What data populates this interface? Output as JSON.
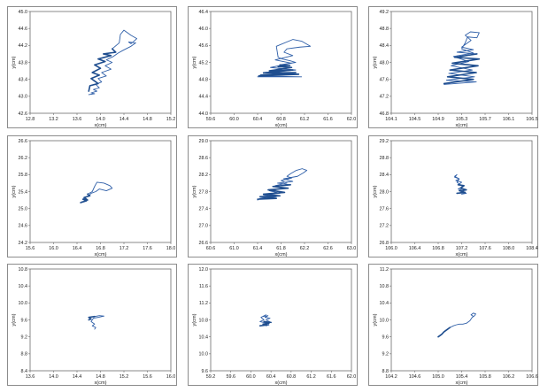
{
  "style": {
    "trace_color": "#2f5fa8",
    "trace_dense_color": "#1f4e8f",
    "frame_color": "#8c8c8c"
  },
  "chart_data": [
    {
      "type": "line",
      "xlabel": "x(cm)",
      "ylabel": "y(cm)",
      "xlim": [
        12.8,
        15.2
      ],
      "ylim": [
        42.6,
        45.0
      ],
      "xticks": [
        "12.8",
        "13.2",
        "13.6",
        "14.0",
        "14.4",
        "14.8",
        "15.2"
      ],
      "yticks": [
        "42.6",
        "43.0",
        "43.4",
        "43.8",
        "44.2",
        "44.6",
        "45.0"
      ],
      "series": [
        {
          "x": [
            13.8,
            13.82,
            13.96,
            13.84,
            13.98,
            13.86,
            14.0,
            13.9,
            14.08,
            13.96,
            14.18,
            14.05,
            14.26,
            14.2,
            14.32,
            14.34,
            14.4,
            14.52,
            14.62,
            14.52,
            14.48,
            14.6,
            14.52,
            14.38,
            14.3,
            14.22,
            14.1,
            14.2,
            14.08,
            14.18,
            14.02,
            14.1,
            13.96,
            14.02,
            13.92,
            13.98,
            13.88,
            13.94,
            13.84,
            13.9,
            13.8
          ],
          "y": [
            43.12,
            43.25,
            43.3,
            43.42,
            43.5,
            43.56,
            43.66,
            43.74,
            43.82,
            43.88,
            43.96,
            44.0,
            44.04,
            44.12,
            44.26,
            44.46,
            44.56,
            44.44,
            44.36,
            44.24,
            44.28,
            44.26,
            44.18,
            44.08,
            44.02,
            43.94,
            43.86,
            43.8,
            43.72,
            43.64,
            43.56,
            43.48,
            43.42,
            43.34,
            43.28,
            43.2,
            43.16,
            43.12,
            43.08,
            43.06,
            43.04
          ]
        }
      ]
    },
    {
      "type": "line",
      "xlabel": "x(cm)",
      "ylabel": "y(cm)",
      "xlim": [
        59.6,
        62.0
      ],
      "ylim": [
        44.0,
        46.4
      ],
      "xticks": [
        "59.6",
        "60.0",
        "60.4",
        "60.8",
        "61.2",
        "61.6",
        "62.0"
      ],
      "yticks": [
        "44.0",
        "44.4",
        "44.8",
        "45.2",
        "45.6",
        "46.0",
        "46.4"
      ],
      "series": [
        {
          "x": [
            60.42,
            61.1,
            60.45,
            61.05,
            60.5,
            61.0,
            60.6,
            60.98,
            60.75,
            60.95,
            60.78,
            61.05,
            60.95,
            60.82,
            60.75,
            60.72,
            61.0,
            61.15,
            61.3,
            61.12,
            60.9,
            60.85,
            61.0,
            60.7,
            60.98,
            60.62,
            61.05,
            60.5,
            61.1,
            60.42,
            61.15,
            60.4
          ],
          "y": [
            44.88,
            44.92,
            44.9,
            44.96,
            44.95,
            45.02,
            45.0,
            45.08,
            45.1,
            45.12,
            45.14,
            45.2,
            45.24,
            45.28,
            45.32,
            45.58,
            45.74,
            45.7,
            45.58,
            45.56,
            45.52,
            45.44,
            45.36,
            45.26,
            45.18,
            45.08,
            45.02,
            44.96,
            44.93,
            44.88,
            44.86,
            44.86
          ]
        }
      ]
    },
    {
      "type": "line",
      "xlabel": "x(cm)",
      "ylabel": "y(cm)",
      "xlim": [
        104.1,
        106.5
      ],
      "ylim": [
        46.8,
        49.2
      ],
      "xticks": [
        "104.1",
        "104.5",
        "104.9",
        "105.3",
        "105.7",
        "106.1",
        "106.5"
      ],
      "yticks": [
        "46.8",
        "47.2",
        "47.6",
        "48.0",
        "48.4",
        "48.8",
        "49.2"
      ],
      "series": [
        {
          "x": [
            105.0,
            105.5,
            105.06,
            105.55,
            105.1,
            105.58,
            105.14,
            105.6,
            105.18,
            105.56,
            105.22,
            105.5,
            105.3,
            105.46,
            105.36,
            105.45,
            105.6,
            105.56,
            105.4,
            105.36,
            105.3,
            105.5,
            105.16,
            105.42,
            105.12,
            105.48,
            105.08,
            105.52,
            105.04,
            105.55,
            105.0
          ],
          "y": [
            47.5,
            47.6,
            47.66,
            47.76,
            47.82,
            47.92,
            47.98,
            48.08,
            48.12,
            48.2,
            48.24,
            48.3,
            48.36,
            48.52,
            48.64,
            48.72,
            48.7,
            48.58,
            48.6,
            48.46,
            48.32,
            48.22,
            48.14,
            48.02,
            47.92,
            47.82,
            47.74,
            47.66,
            47.58,
            47.54,
            47.48
          ]
        }
      ]
    },
    {
      "type": "line",
      "xlabel": "x(cm)",
      "ylabel": "y(cm)",
      "xlim": [
        15.6,
        18.0
      ],
      "ylim": [
        24.2,
        26.6
      ],
      "xticks": [
        "15.6",
        "16.0",
        "16.4",
        "16.8",
        "17.2",
        "17.6",
        "18.0"
      ],
      "yticks": [
        "24.2",
        "24.6",
        "25.0",
        "25.4",
        "25.8",
        "26.2",
        "26.6"
      ],
      "series": [
        {
          "x": [
            16.46,
            16.56,
            16.5,
            16.58,
            16.52,
            16.62,
            16.58,
            16.66,
            16.7,
            16.74,
            16.86,
            16.96,
            17.0,
            16.9,
            16.78,
            16.72,
            16.64,
            16.6,
            16.54,
            16.5,
            16.56,
            16.48
          ],
          "y": [
            25.14,
            25.18,
            25.22,
            25.2,
            25.26,
            25.3,
            25.34,
            25.4,
            25.52,
            25.62,
            25.6,
            25.54,
            25.48,
            25.42,
            25.46,
            25.4,
            25.36,
            25.3,
            25.26,
            25.22,
            25.18,
            25.16
          ]
        }
      ]
    },
    {
      "type": "line",
      "xlabel": "x(cm)",
      "ylabel": "y(cm)",
      "xlim": [
        60.6,
        63.0
      ],
      "ylim": [
        26.6,
        29.0
      ],
      "xticks": [
        "60.6",
        "61.0",
        "61.4",
        "61.8",
        "62.2",
        "62.6",
        "63.0"
      ],
      "yticks": [
        "26.6",
        "27.0",
        "27.4",
        "27.8",
        "28.2",
        "28.6",
        "29.0"
      ],
      "series": [
        {
          "x": [
            61.4,
            61.72,
            61.44,
            61.78,
            61.5,
            61.86,
            61.58,
            61.92,
            61.66,
            61.96,
            61.74,
            62.0,
            61.84,
            62.08,
            62.18,
            62.24,
            62.16,
            62.06,
            61.96,
            61.9,
            61.98,
            61.8,
            61.9,
            61.7,
            61.84,
            61.6,
            61.78,
            61.5,
            61.72,
            61.44,
            61.4
          ],
          "y": [
            27.62,
            27.64,
            27.68,
            27.7,
            27.74,
            27.78,
            27.84,
            27.88,
            27.92,
            27.96,
            28.0,
            28.04,
            28.1,
            28.16,
            28.24,
            28.3,
            28.34,
            28.3,
            28.22,
            28.16,
            28.12,
            28.06,
            28.0,
            27.94,
            27.88,
            27.82,
            27.76,
            27.72,
            27.68,
            27.64,
            27.6
          ]
        }
      ]
    },
    {
      "type": "line",
      "xlabel": "x(cm)",
      "ylabel": "y(cm)",
      "xlim": [
        106.0,
        108.4
      ],
      "ylim": [
        26.8,
        29.2
      ],
      "xticks": [
        "106.0",
        "106.4",
        "106.8",
        "107.2",
        "107.6",
        "108.0",
        "108.4"
      ],
      "yticks": [
        "26.8",
        "27.2",
        "27.6",
        "28.0",
        "28.4",
        "28.8",
        "29.2"
      ],
      "series": [
        {
          "x": [
            107.12,
            107.26,
            107.16,
            107.28,
            107.18,
            107.24,
            107.14,
            107.2,
            107.1,
            107.16,
            107.08,
            107.12,
            107.08,
            107.16,
            107.12,
            107.22,
            107.14,
            107.24,
            107.18,
            107.28,
            107.2
          ],
          "y": [
            27.96,
            27.98,
            28.02,
            28.04,
            28.08,
            28.14,
            28.16,
            28.22,
            28.26,
            28.3,
            28.34,
            28.4,
            28.36,
            28.3,
            28.22,
            28.12,
            28.06,
            28.02,
            27.98,
            27.96,
            27.94
          ]
        }
      ]
    },
    {
      "type": "line",
      "xlabel": "x(cm)",
      "ylabel": "y(cm)",
      "xlim": [
        13.6,
        16.0
      ],
      "ylim": [
        8.4,
        10.8
      ],
      "xticks": [
        "13.6",
        "14.0",
        "14.4",
        "14.8",
        "15.2",
        "15.6",
        "16.0"
      ],
      "yticks": [
        "8.4",
        "8.8",
        "9.2",
        "9.6",
        "10.0",
        "10.4",
        "10.8"
      ],
      "series": [
        {
          "x": [
            14.6,
            14.64,
            14.6,
            14.7,
            14.78,
            14.86,
            14.76,
            14.68,
            14.64,
            14.7,
            14.66,
            14.72,
            14.7
          ],
          "y": [
            9.6,
            9.62,
            9.66,
            9.68,
            9.7,
            9.69,
            9.66,
            9.64,
            9.56,
            9.5,
            9.46,
            9.42,
            9.38
          ]
        }
      ]
    },
    {
      "type": "line",
      "xlabel": "x(cm)",
      "ylabel": "y(cm)",
      "xlim": [
        59.2,
        62.0
      ],
      "ylim": [
        9.6,
        12.0
      ],
      "xticks": [
        "59.2",
        "59.6",
        "60.0",
        "60.4",
        "60.8",
        "61.2",
        "61.6",
        "62.0"
      ],
      "yticks": [
        "9.6",
        "10.0",
        "10.4",
        "10.8",
        "11.2",
        "11.6",
        "12.0"
      ],
      "series": [
        {
          "x": [
            60.18,
            60.32,
            60.24,
            60.36,
            60.26,
            60.4,
            60.3,
            60.38,
            60.28,
            60.34,
            60.24,
            60.3,
            60.2,
            60.26,
            60.18,
            60.32,
            60.36,
            60.3
          ],
          "y": [
            10.66,
            10.68,
            10.7,
            10.72,
            10.76,
            10.74,
            10.8,
            10.84,
            10.86,
            10.9,
            10.88,
            10.92,
            10.86,
            10.8,
            10.76,
            10.72,
            10.68,
            10.66
          ]
        }
      ]
    },
    {
      "type": "line",
      "xlabel": "x(cm)",
      "ylabel": "y(cm)",
      "xlim": [
        104.2,
        106.6
      ],
      "ylim": [
        8.8,
        11.2
      ],
      "xticks": [
        "104.2",
        "104.6",
        "105.0",
        "105.4",
        "105.8",
        "106.2",
        "106.6"
      ],
      "yticks": [
        "8.8",
        "9.2",
        "9.6",
        "10.0",
        "10.4",
        "10.8",
        "11.2"
      ],
      "series": [
        {
          "x": [
            105.0,
            105.06,
            105.1,
            105.16,
            105.2,
            105.26,
            105.3,
            105.36,
            105.42,
            105.48,
            105.54,
            105.58,
            105.62,
            105.64,
            105.6,
            105.56,
            105.6
          ],
          "y": [
            9.6,
            9.66,
            9.72,
            9.78,
            9.82,
            9.86,
            9.88,
            9.9,
            9.9,
            9.92,
            9.98,
            10.06,
            10.1,
            10.14,
            10.16,
            10.12,
            10.08
          ]
        }
      ]
    }
  ]
}
